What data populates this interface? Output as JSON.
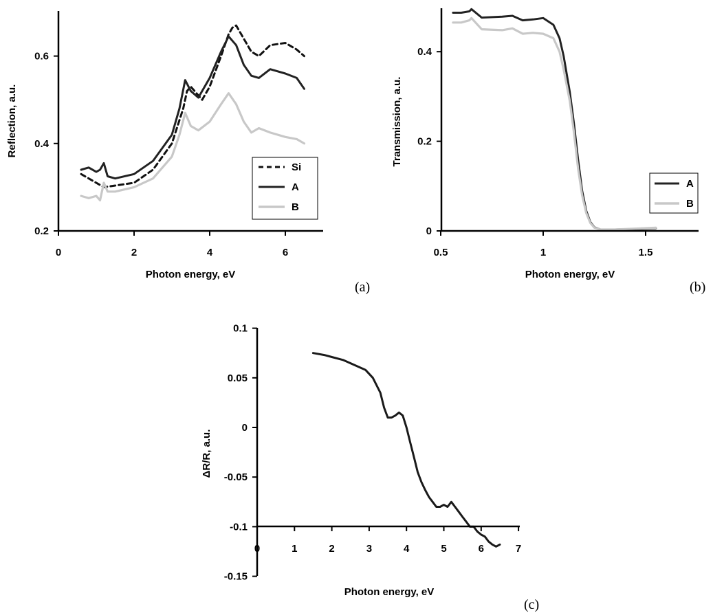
{
  "chart_data": [
    {
      "id": "a",
      "type": "line",
      "panel_label": "(a)",
      "xlabel": "Photon energy, eV",
      "ylabel": "Reflection, a.u.",
      "xlim": [
        0,
        7
      ],
      "ylim": [
        0.2,
        0.7
      ],
      "xticks": [
        0,
        2,
        4,
        6
      ],
      "yticks": [
        0.2,
        0.4,
        0.6
      ],
      "ytick_labels": [
        "0.2",
        "0.4",
        "0.6"
      ],
      "legend_position": "bottom-right",
      "series": [
        {
          "name": "Si",
          "style": "dashed",
          "color": "#111111",
          "x": [
            0.6,
            1.2,
            2.0,
            2.5,
            3.0,
            3.3,
            3.4,
            3.5,
            3.8,
            4.0,
            4.3,
            4.5,
            4.6,
            4.7,
            4.9,
            5.1,
            5.3,
            5.6,
            6.0,
            6.3,
            6.5
          ],
          "y": [
            0.33,
            0.3,
            0.31,
            0.34,
            0.4,
            0.48,
            0.52,
            0.53,
            0.5,
            0.53,
            0.6,
            0.65,
            0.665,
            0.67,
            0.64,
            0.61,
            0.6,
            0.625,
            0.63,
            0.615,
            0.6
          ]
        },
        {
          "name": "A",
          "style": "solid",
          "color": "#222222",
          "x": [
            0.6,
            0.8,
            1.0,
            1.1,
            1.2,
            1.3,
            1.5,
            2.0,
            2.5,
            3.0,
            3.2,
            3.35,
            3.5,
            3.7,
            4.0,
            4.3,
            4.5,
            4.7,
            4.9,
            5.1,
            5.3,
            5.6,
            6.0,
            6.3,
            6.5
          ],
          "y": [
            0.34,
            0.345,
            0.335,
            0.34,
            0.355,
            0.325,
            0.32,
            0.33,
            0.36,
            0.42,
            0.48,
            0.545,
            0.52,
            0.505,
            0.55,
            0.61,
            0.645,
            0.625,
            0.58,
            0.555,
            0.55,
            0.57,
            0.56,
            0.55,
            0.525
          ]
        },
        {
          "name": "B",
          "style": "solid",
          "color": "#c8c8c8",
          "x": [
            0.6,
            0.8,
            1.0,
            1.1,
            1.2,
            1.3,
            1.5,
            2.0,
            2.5,
            3.0,
            3.2,
            3.35,
            3.5,
            3.7,
            4.0,
            4.3,
            4.5,
            4.7,
            4.9,
            5.1,
            5.3,
            5.6,
            6.0,
            6.3,
            6.5
          ],
          "y": [
            0.28,
            0.275,
            0.28,
            0.27,
            0.31,
            0.29,
            0.29,
            0.3,
            0.32,
            0.37,
            0.42,
            0.47,
            0.44,
            0.43,
            0.45,
            0.49,
            0.515,
            0.49,
            0.45,
            0.425,
            0.435,
            0.425,
            0.415,
            0.41,
            0.4
          ]
        }
      ]
    },
    {
      "id": "b",
      "type": "line",
      "panel_label": "(b)",
      "xlabel": "Photon energy, eV",
      "ylabel": "Transmission, a.u.",
      "xlim": [
        0.5,
        1.75
      ],
      "ylim": [
        0,
        0.5
      ],
      "xticks": [
        0.5,
        1.0,
        1.5
      ],
      "xtick_labels": [
        "0.5",
        "1",
        "1.5"
      ],
      "yticks": [
        0,
        0.2,
        0.4
      ],
      "ytick_labels": [
        "0",
        "0.2",
        "0.4"
      ],
      "legend_position": "bottom-right",
      "series": [
        {
          "name": "A",
          "style": "solid",
          "color": "#222222",
          "x": [
            0.56,
            0.6,
            0.64,
            0.65,
            0.7,
            0.8,
            0.85,
            0.9,
            0.95,
            1.0,
            1.05,
            1.08,
            1.1,
            1.13,
            1.15,
            1.17,
            1.19,
            1.21,
            1.23,
            1.25,
            1.28,
            1.35,
            1.45,
            1.55
          ],
          "y": [
            0.487,
            0.487,
            0.49,
            0.495,
            0.476,
            0.478,
            0.48,
            0.47,
            0.472,
            0.475,
            0.46,
            0.43,
            0.39,
            0.31,
            0.24,
            0.16,
            0.09,
            0.045,
            0.02,
            0.008,
            0.003,
            0.003,
            0.004,
            0.006
          ]
        },
        {
          "name": "B",
          "style": "solid",
          "color": "#c8c8c8",
          "x": [
            0.56,
            0.6,
            0.64,
            0.65,
            0.7,
            0.8,
            0.85,
            0.9,
            0.95,
            1.0,
            1.05,
            1.08,
            1.1,
            1.13,
            1.15,
            1.17,
            1.19,
            1.21,
            1.23,
            1.25,
            1.28,
            1.35,
            1.45,
            1.55
          ],
          "y": [
            0.465,
            0.465,
            0.47,
            0.475,
            0.45,
            0.448,
            0.452,
            0.44,
            0.442,
            0.44,
            0.43,
            0.4,
            0.36,
            0.29,
            0.22,
            0.14,
            0.08,
            0.04,
            0.018,
            0.007,
            0.003,
            0.003,
            0.005,
            0.007
          ]
        }
      ]
    },
    {
      "id": "c",
      "type": "line",
      "panel_label": "(c)",
      "xlabel": "Photon energy, eV",
      "ylabel": "ΔR/R, a.u.",
      "xlim": [
        0,
        7
      ],
      "ylim": [
        -0.15,
        0.1
      ],
      "x_axis_crosses_at": -0.125,
      "xticks": [
        0,
        1,
        2,
        3,
        4,
        5,
        6,
        7
      ],
      "yticks": [
        -0.15,
        -0.1,
        -0.05,
        0,
        0.05,
        0.1
      ],
      "ytick_labels": [
        "-0.15",
        "-0.1",
        "-0.05",
        "0",
        "0.05",
        "0.1"
      ],
      "series": [
        {
          "name": "",
          "style": "solid",
          "color": "#1a1a1a",
          "x": [
            1.5,
            1.8,
            2.0,
            2.3,
            2.6,
            2.9,
            3.1,
            3.3,
            3.4,
            3.5,
            3.6,
            3.7,
            3.8,
            3.9,
            4.0,
            4.1,
            4.2,
            4.3,
            4.4,
            4.5,
            4.6,
            4.7,
            4.8,
            4.9,
            5.0,
            5.1,
            5.2,
            5.3,
            5.4,
            5.5,
            5.6,
            5.7,
            5.8,
            5.9,
            6.0,
            6.1,
            6.2,
            6.3,
            6.4,
            6.5
          ],
          "y": [
            0.075,
            0.073,
            0.071,
            0.068,
            0.063,
            0.058,
            0.05,
            0.035,
            0.02,
            0.01,
            0.01,
            0.012,
            0.015,
            0.012,
            0.0,
            -0.015,
            -0.03,
            -0.045,
            -0.055,
            -0.063,
            -0.07,
            -0.075,
            -0.08,
            -0.08,
            -0.078,
            -0.08,
            -0.075,
            -0.08,
            -0.085,
            -0.09,
            -0.095,
            -0.1,
            -0.1,
            -0.105,
            -0.108,
            -0.11,
            -0.115,
            -0.118,
            -0.12,
            -0.118
          ]
        }
      ]
    }
  ]
}
